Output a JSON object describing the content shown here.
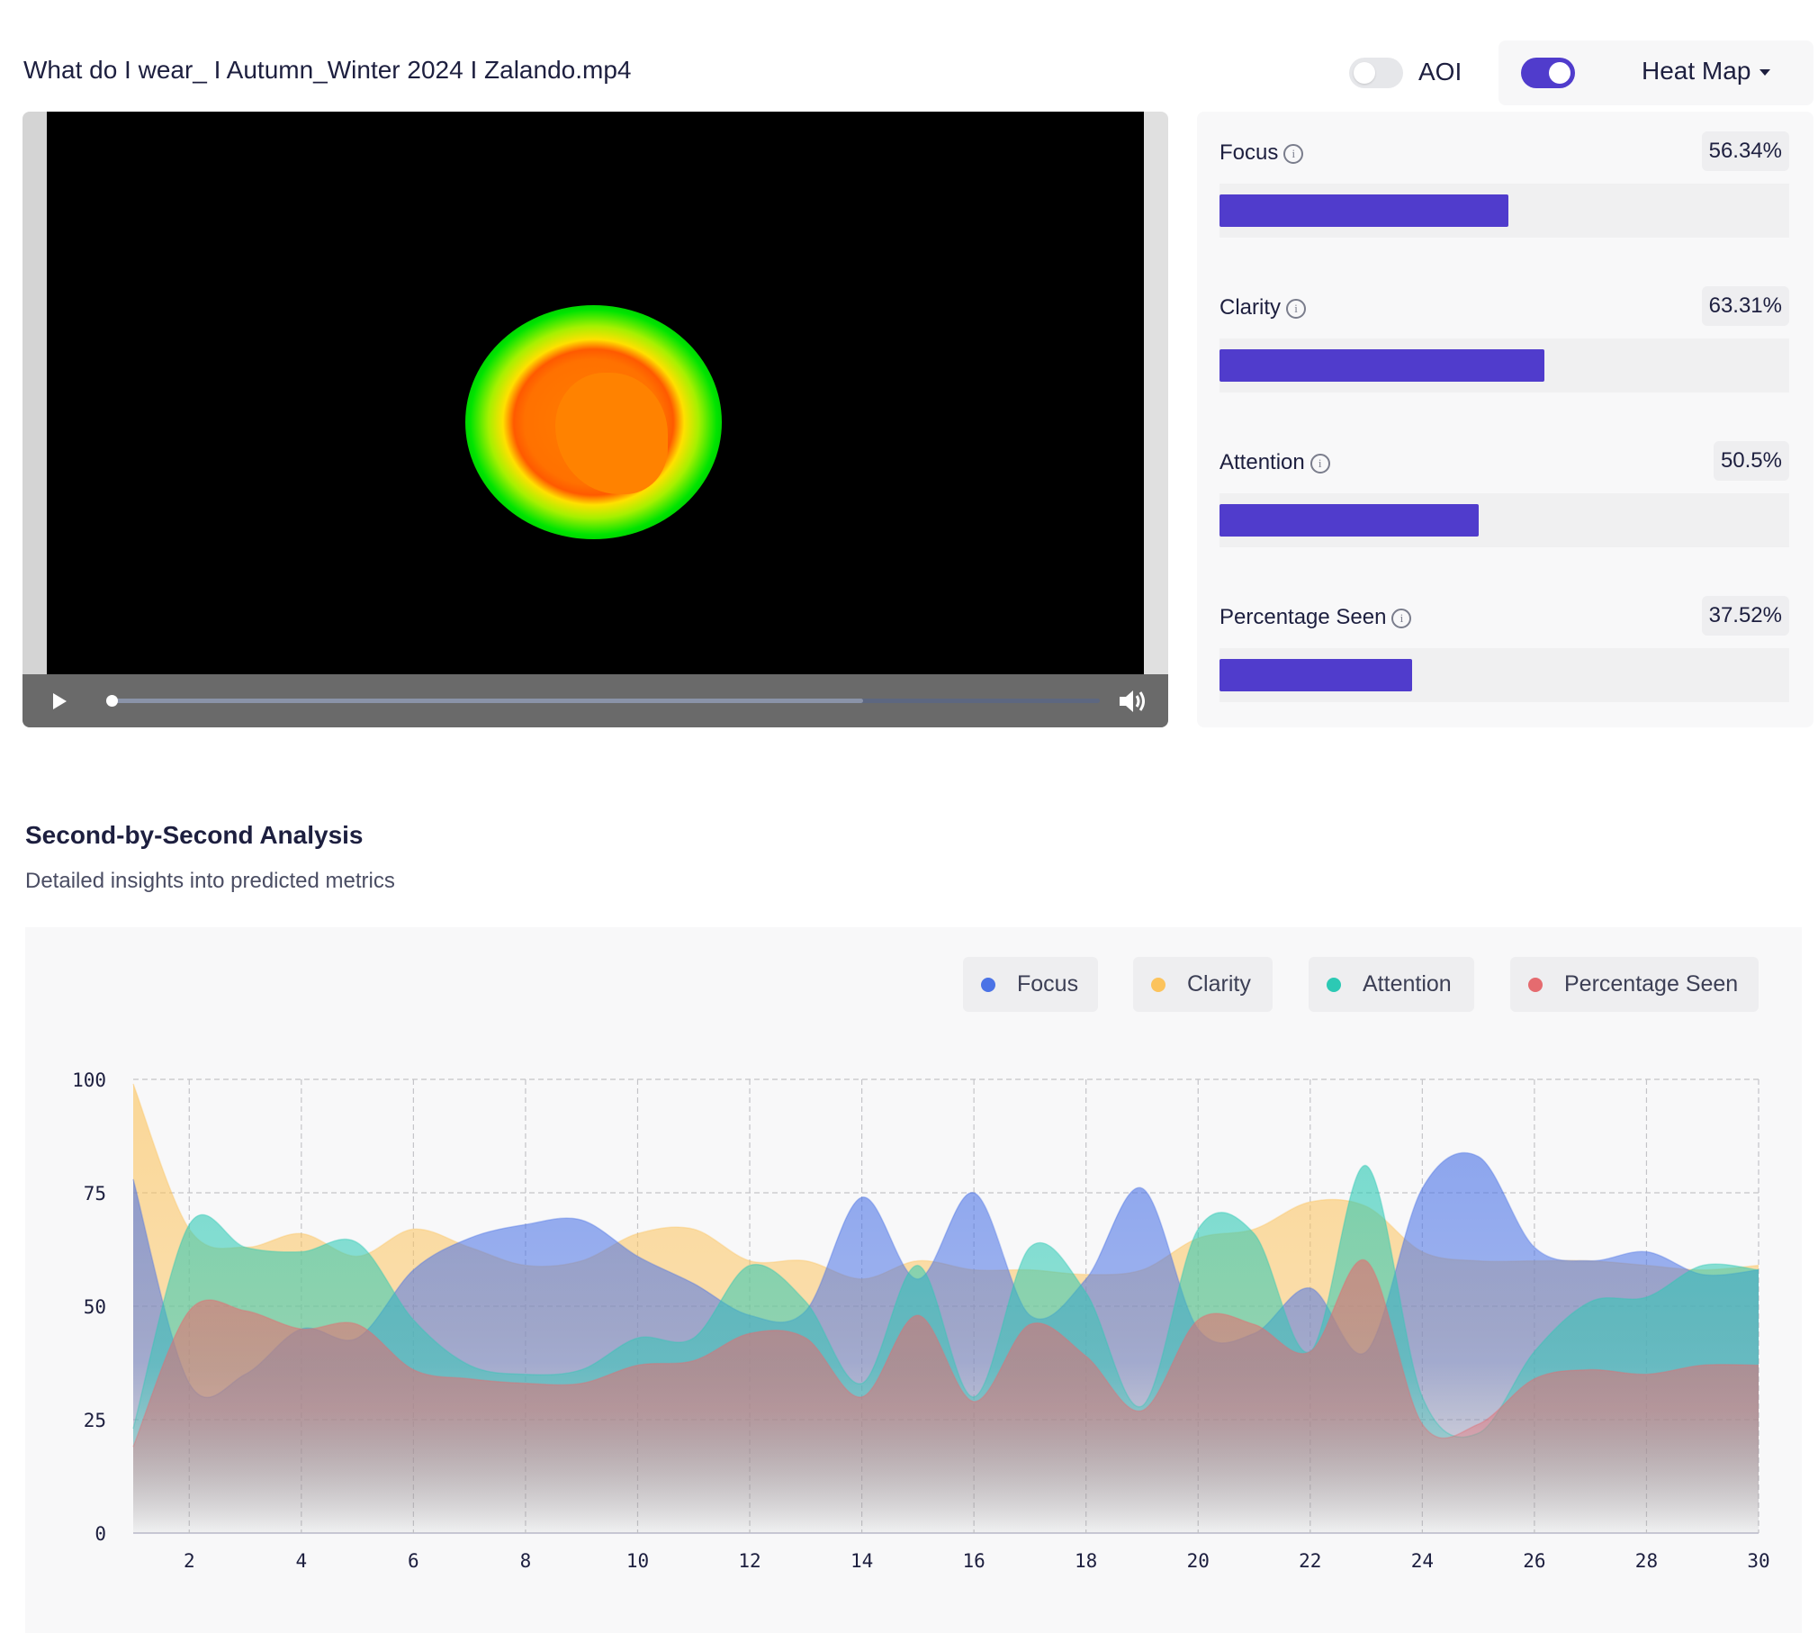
{
  "header": {
    "video_title": "What do I wear_ I Autumn_Winter 2024 I Zalando.mp4",
    "aoi_label": "AOI",
    "aoi_enabled": false,
    "heatmap_enabled": true,
    "view_mode": "Heat Map"
  },
  "player": {
    "playing": false,
    "progress_fraction": 0.0,
    "buffered_fraction": 0.76
  },
  "metrics": [
    {
      "label": "Focus",
      "value_text": "56.34%",
      "value": 56.34
    },
    {
      "label": "Clarity",
      "value_text": "63.31%",
      "value": 63.31
    },
    {
      "label": "Attention",
      "value_text": "50.5%",
      "value": 50.5
    },
    {
      "label": "Percentage Seen",
      "value_text": "37.52%",
      "value": 37.52
    }
  ],
  "analysis": {
    "title": "Second-by-Second Analysis",
    "subtitle": "Detailed insights into predicted metrics"
  },
  "colors": {
    "accent": "#503ccc",
    "focus": "#4b73e6",
    "clarity": "#fcc35c",
    "attention": "#2cc9b4",
    "percentage_seen": "#e56b6f"
  },
  "chart_data": {
    "type": "area",
    "x": [
      1,
      2,
      3,
      4,
      5,
      6,
      7,
      8,
      9,
      10,
      11,
      12,
      13,
      14,
      15,
      16,
      17,
      18,
      19,
      20,
      21,
      22,
      23,
      24,
      25,
      26,
      27,
      28,
      29,
      30
    ],
    "xticks": [
      2,
      4,
      6,
      8,
      10,
      12,
      14,
      16,
      18,
      20,
      22,
      24,
      26,
      28,
      30
    ],
    "yticks": [
      0,
      25,
      50,
      75,
      100
    ],
    "ylim": [
      0,
      100
    ],
    "xlim": [
      1,
      30
    ],
    "grid": true,
    "legend_position": "top-right",
    "series": [
      {
        "name": "Focus",
        "color": "#4b73e6",
        "values": [
          78,
          33,
          35,
          45,
          43,
          58,
          65,
          68,
          69,
          61,
          55,
          48,
          49,
          74,
          56,
          75,
          48,
          56,
          76,
          45,
          44,
          54,
          40,
          76,
          83,
          63,
          60,
          62,
          57,
          58
        ]
      },
      {
        "name": "Clarity",
        "color": "#fcc35c",
        "values": [
          99,
          67,
          63,
          66,
          61,
          67,
          63,
          59,
          60,
          66,
          67,
          60,
          60,
          56,
          60,
          58,
          58,
          57,
          58,
          65,
          67,
          73,
          72,
          62,
          60,
          60,
          60,
          59,
          58,
          59
        ]
      },
      {
        "name": "Attention",
        "color": "#2cc9b4",
        "values": [
          23,
          68,
          63,
          62,
          64,
          47,
          37,
          35,
          36,
          43,
          43,
          59,
          51,
          33,
          59,
          30,
          63,
          53,
          28,
          67,
          66,
          40,
          81,
          30,
          22,
          40,
          51,
          52,
          59,
          58
        ]
      },
      {
        "name": "Percentage Seen",
        "color": "#e56b6f",
        "values": [
          19,
          49,
          49,
          45,
          46,
          36,
          34,
          33,
          33,
          37,
          38,
          44,
          43,
          30,
          48,
          29,
          46,
          39,
          27,
          47,
          46,
          40,
          60,
          24,
          24,
          34,
          36,
          35,
          37,
          37
        ]
      }
    ]
  }
}
